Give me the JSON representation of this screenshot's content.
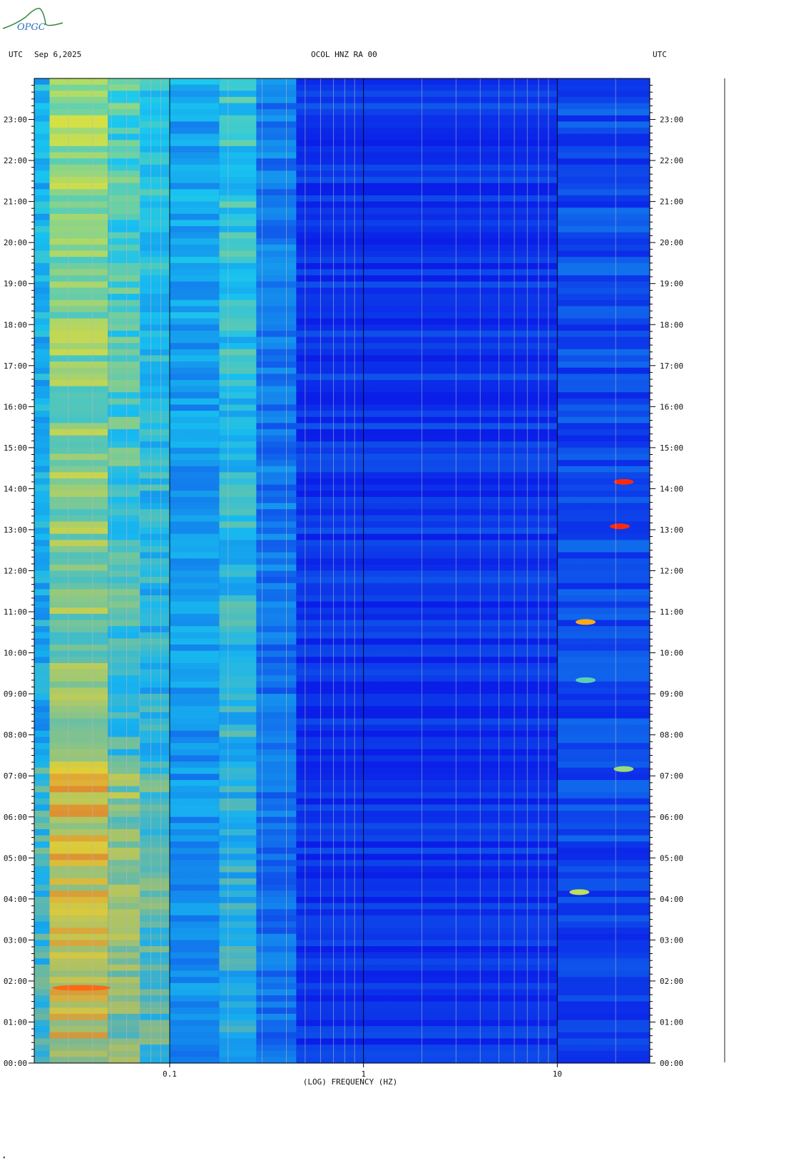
{
  "header": {
    "left_tz": "UTC",
    "date": "Sep 6,2025",
    "station": "OCOL HNZ RA 00",
    "right_tz": "UTC"
  },
  "logo": {
    "text": "OPGC"
  },
  "colors": {
    "background": "#ffffff",
    "text": "#111111",
    "low": "#0a1ee8",
    "mid": "#19c8f0",
    "high": "#ffe81e",
    "peak": "#ff2a0a"
  },
  "chart_data": {
    "type": "heatmap",
    "title": "OCOL HNZ RA 00",
    "xlabel": "(LOG) FREQUENCY (HZ)",
    "x_scale": "log",
    "xlim": [
      0.02,
      30
    ],
    "x_ticks": [
      0.1,
      1,
      10
    ],
    "x_tick_labels": [
      "0.1",
      "1",
      "10"
    ],
    "y_ticks": [
      "00:00",
      "01:00",
      "02:00",
      "03:00",
      "04:00",
      "05:00",
      "06:00",
      "07:00",
      "08:00",
      "09:00",
      "10:00",
      "11:00",
      "12:00",
      "13:00",
      "14:00",
      "15:00",
      "16:00",
      "17:00",
      "18:00",
      "19:00",
      "20:00",
      "21:00",
      "22:00",
      "23:00"
    ],
    "ylim_hours": [
      0,
      24
    ],
    "y_direction": "time increases upward",
    "grid": "vertical lines at 1-2-3...9 × decade",
    "bands": [
      {
        "f_min": 0.02,
        "f_max": 0.024,
        "level": 0.45
      },
      {
        "f_min": 0.024,
        "f_max": 0.048,
        "level": 0.68
      },
      {
        "f_min": 0.048,
        "f_max": 0.07,
        "level": 0.58
      },
      {
        "f_min": 0.07,
        "f_max": 0.1,
        "level": 0.5
      },
      {
        "f_min": 0.1,
        "f_max": 0.18,
        "level": 0.4
      },
      {
        "f_min": 0.18,
        "f_max": 0.28,
        "level": 0.52
      },
      {
        "f_min": 0.28,
        "f_max": 0.45,
        "level": 0.28
      },
      {
        "f_min": 0.45,
        "f_max": 10,
        "level": 0.06
      },
      {
        "f_min": 10,
        "f_max": 30,
        "level": 0.14
      }
    ],
    "events": [
      {
        "time": "14:10",
        "f": 22,
        "level": 1.0
      },
      {
        "time": "13:05",
        "f": 21,
        "level": 1.0
      },
      {
        "time": "10:45",
        "f": 14,
        "level": 0.9
      },
      {
        "time": "04:10",
        "f": 13,
        "level": 0.75
      },
      {
        "time": "07:10",
        "f": 22,
        "level": 0.7
      },
      {
        "time": "09:20",
        "f": 14,
        "level": 0.6
      },
      {
        "time": "01:50",
        "f": 0.035,
        "level": 0.95
      }
    ]
  }
}
